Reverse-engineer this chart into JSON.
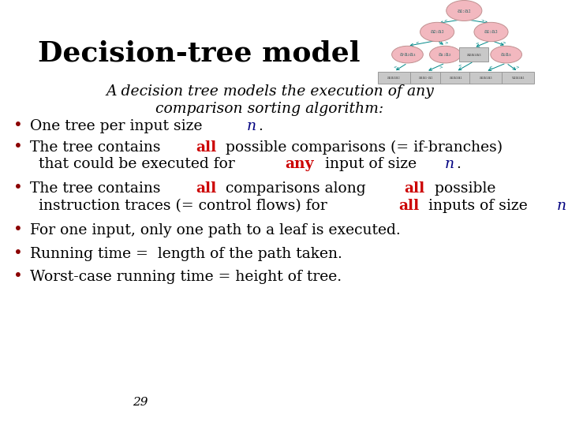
{
  "title": "Decision-tree model",
  "subtitle_line1": "A decision tree models the execution of any",
  "subtitle_line2": "comparison sorting algorithm:",
  "bg_color": "#ffffff",
  "title_color": "#000000",
  "bullet_color": "#8B0000",
  "text_color": "#000000",
  "red_color": "#cc0000",
  "italic_color": "#000080",
  "node_fill": "#f2b8bf",
  "node_edge": "#c09090",
  "leaf_fill": "#c8c8c8",
  "leaf_edge": "#999999",
  "arrow_color": "#008888",
  "page_number": "29",
  "font_size": 13.5,
  "title_font_size": 26,
  "subtitle_font_size": 13.5
}
